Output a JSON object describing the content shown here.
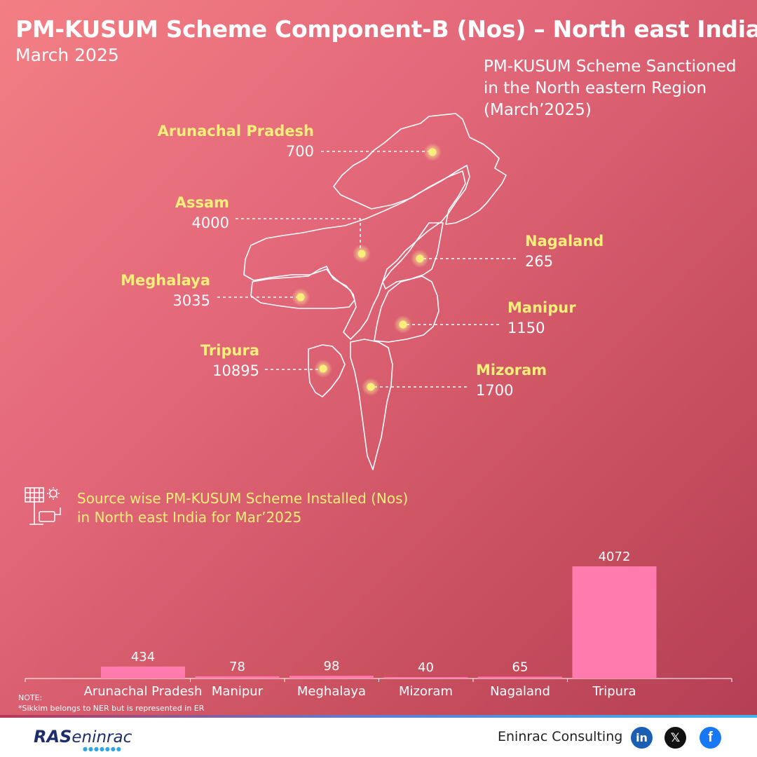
{
  "header": {
    "title": "PM-KUSUM Scheme Component-B (Nos) – North east India",
    "subtitle": "March 2025"
  },
  "map": {
    "title_lines": [
      "PM-KUSUM Scheme Sanctioned",
      "in the North eastern Region",
      "(March’2025)"
    ],
    "states": [
      {
        "name": "Arunachal Pradesh",
        "value": "700"
      },
      {
        "name": "Assam",
        "value": "4000"
      },
      {
        "name": "Nagaland",
        "value": "265"
      },
      {
        "name": "Meghalaya",
        "value": "3035"
      },
      {
        "name": "Manipur",
        "value": "1150"
      },
      {
        "name": "Tripura",
        "value": "10895"
      },
      {
        "name": "Mizoram",
        "value": "1700"
      }
    ]
  },
  "installed": {
    "title_lines": [
      "Source wise PM-KUSUM Scheme Installed (Nos)",
      "in North east India for Mar’2025"
    ],
    "icon": "solar-pump-icon"
  },
  "chart_data": {
    "type": "bar",
    "title": "Source wise PM-KUSUM Scheme Installed (Nos) in North east India for Mar’2025",
    "categories": [
      "Arunachal Pradesh",
      "Manipur",
      "Meghalaya",
      "Mizoram",
      "Nagaland",
      "Tripura"
    ],
    "values": [
      434,
      78,
      98,
      40,
      65,
      4072
    ],
    "xlabel": "",
    "ylabel": "",
    "ylim": [
      0,
      4072
    ],
    "grid": false,
    "bar_color": "#ff7bad"
  },
  "note": {
    "heading": "NOTE:",
    "text": "*Sikkim belongs to NER but is represented in ER"
  },
  "footer": {
    "logo_ras": "RAS",
    "logo_eninrac": "eninrac",
    "company": "Eninrac Consulting",
    "social": [
      {
        "icon": "linkedin-icon",
        "glyph": "in"
      },
      {
        "icon": "x-icon",
        "glyph": "𝕏"
      },
      {
        "icon": "facebook-icon",
        "glyph": "f"
      }
    ]
  },
  "colors": {
    "accent_yellow": "#f8ef7a",
    "bar_pink": "#ff7bad",
    "footer_navy": "#1f2d6b"
  }
}
